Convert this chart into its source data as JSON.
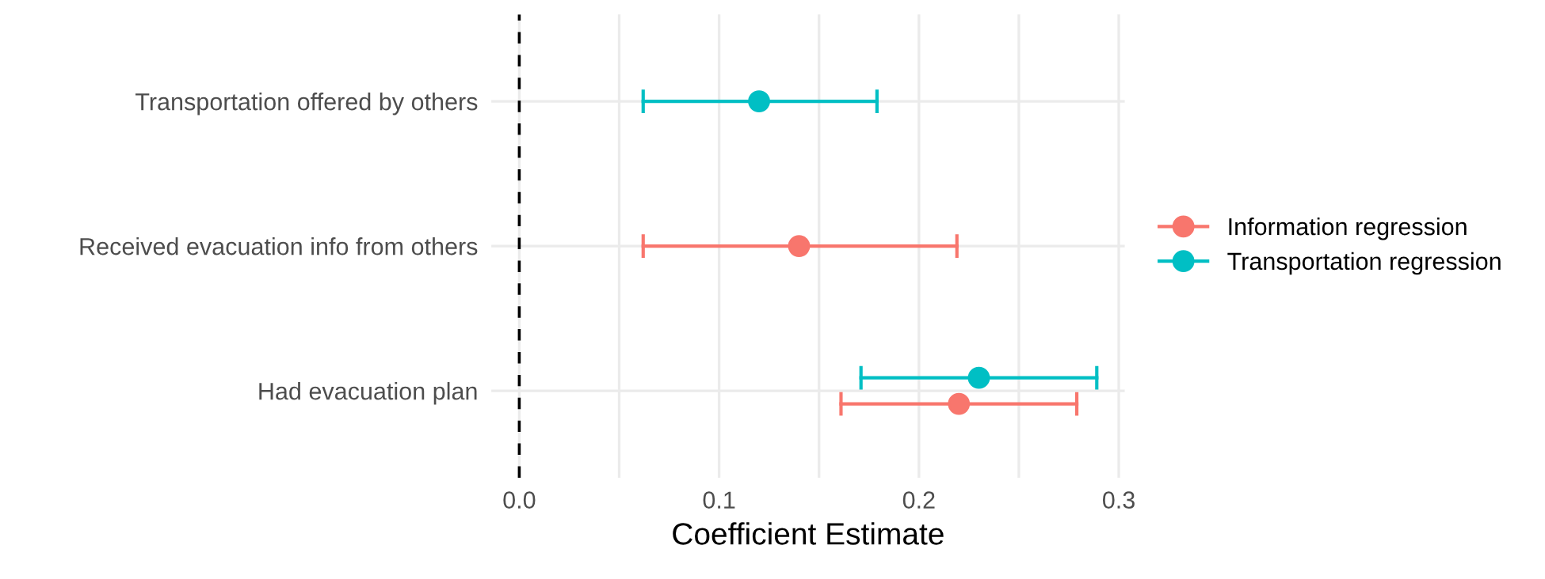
{
  "chart_data": {
    "type": "scatter",
    "orientation": "horizontal",
    "xlabel": "Coefficient Estimate",
    "categories": [
      "Transportation offered by others",
      "Received evacuation info from others",
      "Had evacuation plan"
    ],
    "series": [
      {
        "name": "Information regression",
        "color": "#f8766d",
        "values": [
          null,
          0.14,
          0.22
        ],
        "errors": [
          null,
          [
            0.062,
            0.219
          ],
          [
            0.161,
            0.279
          ]
        ]
      },
      {
        "name": "Transportation regression",
        "color": "#00bfc4",
        "values": [
          0.12,
          null,
          0.23
        ],
        "errors": [
          [
            0.062,
            0.179
          ],
          null,
          [
            0.171,
            0.289
          ]
        ]
      }
    ],
    "xlim": [
      -0.014,
      0.303
    ],
    "xticks": [
      {
        "value": 0,
        "label": "0.0"
      },
      {
        "value": 0.05,
        "label": null
      },
      0.1,
      {
        "value": 0.15,
        "label": null
      },
      0.2,
      {
        "value": 0.25,
        "label": null
      },
      0.3
    ],
    "ref_lines": [
      {
        "axis": "x",
        "value": 0,
        "color": "#000000",
        "line_style": "dashed"
      }
    ],
    "grid": true,
    "legend": "right",
    "marker": "circle"
  }
}
